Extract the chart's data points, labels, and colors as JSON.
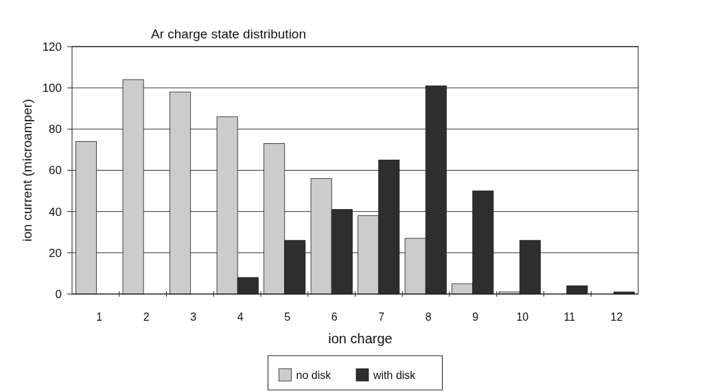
{
  "chart_data": {
    "type": "bar",
    "title": "Ar charge state distribution",
    "xlabel": "ion charge",
    "ylabel": "ion current (microamper)",
    "categories": [
      "1",
      "2",
      "3",
      "4",
      "5",
      "6",
      "7",
      "8",
      "9",
      "10",
      "11",
      "12"
    ],
    "series": [
      {
        "name": "no disk",
        "color": "#cccccc",
        "values": [
          74,
          104,
          98,
          86,
          73,
          56,
          38,
          27,
          5,
          1,
          0,
          0
        ]
      },
      {
        "name": "with disk",
        "color": "#2e2e2e",
        "values": [
          0,
          0,
          0,
          8,
          26,
          41,
          65,
          101,
          50,
          26,
          4,
          1
        ]
      }
    ],
    "ylim": [
      0,
      120
    ],
    "yticks": [
      0,
      20,
      40,
      60,
      80,
      100,
      120
    ],
    "grid": "y",
    "legend": "bottom"
  }
}
